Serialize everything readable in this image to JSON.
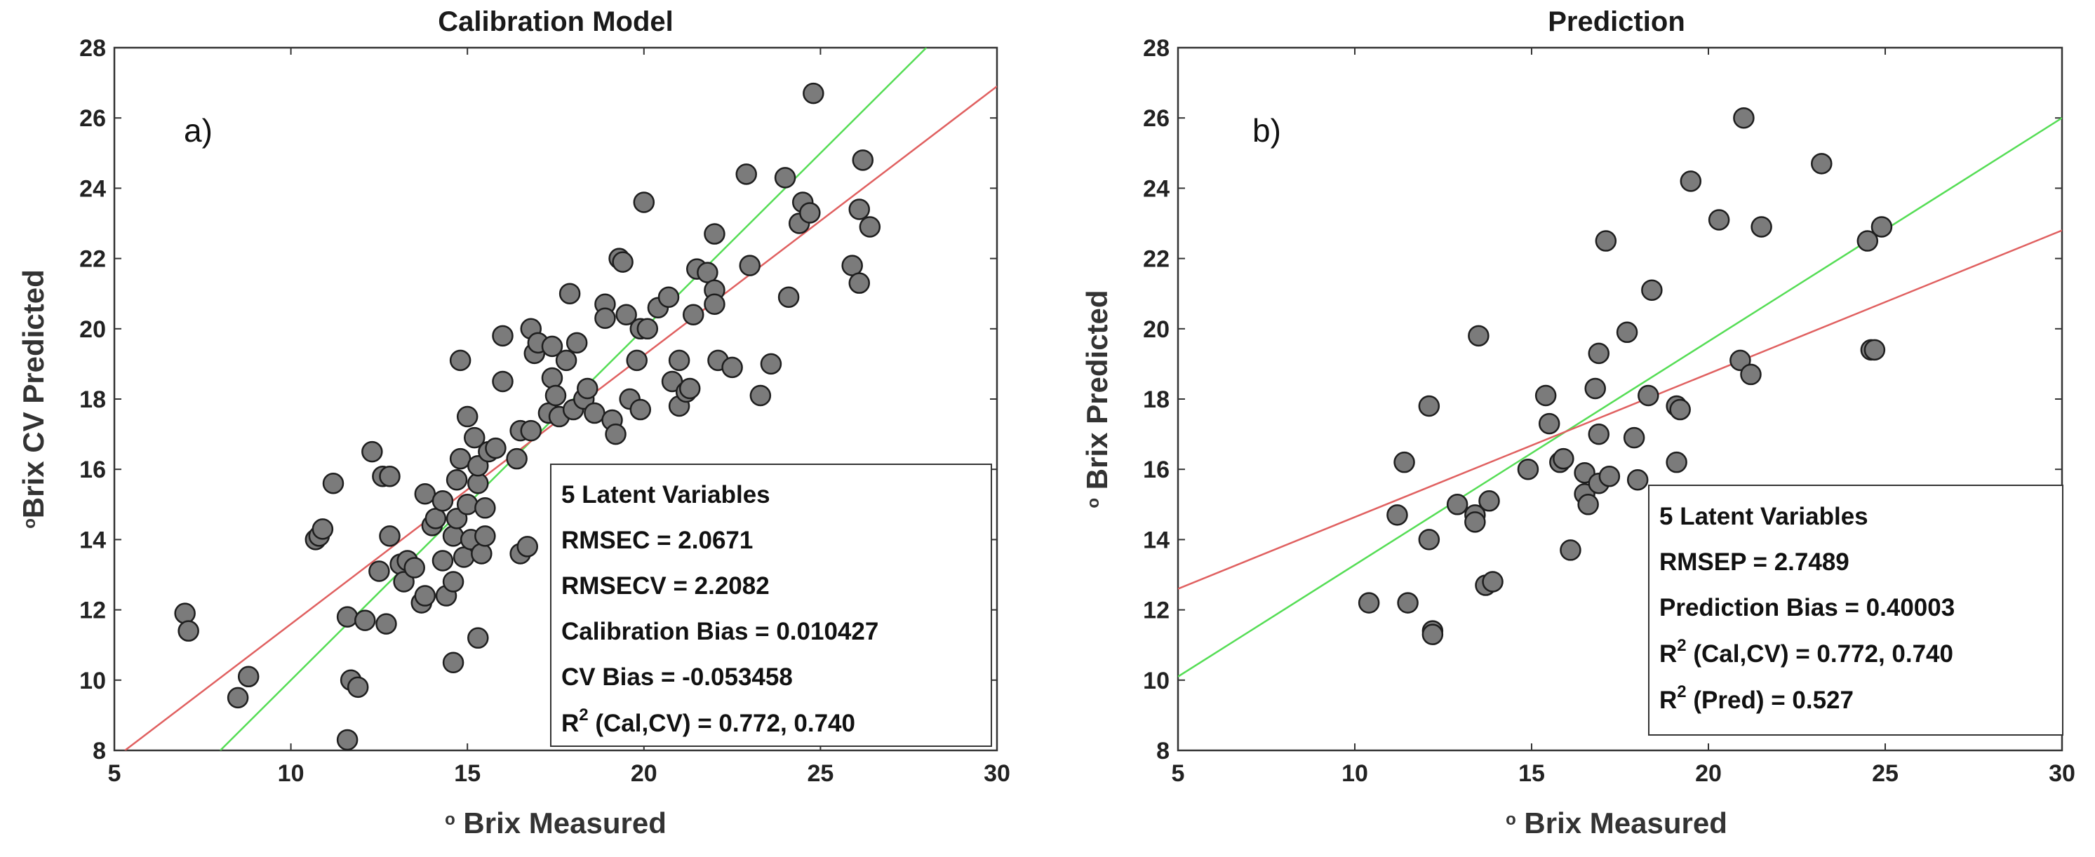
{
  "chart_data": [
    {
      "type": "scatter",
      "title": "Calibration Model",
      "panel_label": "a)",
      "xlabel": "o Brix Measured",
      "ylabel": "oBrix CV Predicted",
      "xlim": [
        5,
        30
      ],
      "ylim": [
        8,
        28
      ],
      "xticks": [
        "5",
        "10",
        "15",
        "20",
        "25",
        "30"
      ],
      "yticks": [
        "8",
        "10",
        "12",
        "14",
        "16",
        "18",
        "20",
        "22",
        "24",
        "26",
        "28"
      ],
      "stats": [
        "5 Latent Variables",
        "RMSEC = 2.0671",
        "RMSECV = 2.2082",
        "Calibration Bias = 0.010427",
        "CV Bias = -0.053458",
        "R2 (Cal,CV) = 0.772, 0.740"
      ],
      "fit_line": {
        "color": "#e06060",
        "x": [
          5.3,
          30
        ],
        "y": [
          8.0,
          26.9
        ]
      },
      "ideal_line": {
        "color": "#55dd55",
        "x": [
          8,
          28
        ],
        "y": [
          8,
          28
        ]
      },
      "points": [
        [
          7.0,
          11.9
        ],
        [
          7.1,
          11.4
        ],
        [
          8.5,
          9.5
        ],
        [
          8.8,
          10.1
        ],
        [
          10.7,
          14.0
        ],
        [
          10.8,
          14.1
        ],
        [
          10.9,
          14.3
        ],
        [
          11.2,
          15.6
        ],
        [
          11.6,
          11.8
        ],
        [
          11.6,
          8.3
        ],
        [
          11.7,
          10.0
        ],
        [
          11.9,
          9.8
        ],
        [
          12.1,
          11.7
        ],
        [
          12.3,
          16.5
        ],
        [
          12.5,
          13.1
        ],
        [
          12.6,
          15.8
        ],
        [
          12.7,
          11.6
        ],
        [
          12.8,
          14.1
        ],
        [
          12.8,
          15.8
        ],
        [
          13.1,
          13.3
        ],
        [
          13.2,
          12.8
        ],
        [
          13.3,
          13.4
        ],
        [
          13.5,
          13.2
        ],
        [
          13.7,
          12.2
        ],
        [
          13.8,
          12.4
        ],
        [
          13.8,
          15.3
        ],
        [
          14.0,
          14.4
        ],
        [
          14.1,
          14.6
        ],
        [
          14.3,
          13.4
        ],
        [
          14.3,
          15.1
        ],
        [
          14.4,
          12.4
        ],
        [
          14.6,
          10.5
        ],
        [
          14.6,
          12.8
        ],
        [
          14.6,
          14.1
        ],
        [
          14.7,
          14.6
        ],
        [
          14.7,
          15.7
        ],
        [
          14.8,
          16.3
        ],
        [
          14.8,
          19.1
        ],
        [
          14.9,
          13.5
        ],
        [
          15.0,
          17.5
        ],
        [
          15.0,
          15.0
        ],
        [
          15.1,
          14.0
        ],
        [
          15.2,
          16.9
        ],
        [
          15.3,
          11.2
        ],
        [
          15.3,
          15.6
        ],
        [
          15.3,
          16.1
        ],
        [
          15.4,
          13.6
        ],
        [
          15.5,
          14.1
        ],
        [
          15.5,
          14.9
        ],
        [
          15.6,
          16.5
        ],
        [
          15.8,
          16.6
        ],
        [
          16.0,
          18.5
        ],
        [
          16.0,
          19.8
        ],
        [
          16.4,
          16.3
        ],
        [
          16.5,
          13.6
        ],
        [
          16.5,
          17.1
        ],
        [
          16.7,
          13.8
        ],
        [
          16.8,
          17.1
        ],
        [
          16.8,
          20.0
        ],
        [
          16.9,
          19.3
        ],
        [
          17.0,
          19.6
        ],
        [
          17.3,
          17.6
        ],
        [
          17.4,
          18.6
        ],
        [
          17.4,
          19.5
        ],
        [
          17.5,
          18.1
        ],
        [
          17.6,
          17.5
        ],
        [
          17.8,
          19.1
        ],
        [
          17.9,
          21.0
        ],
        [
          18.0,
          17.7
        ],
        [
          18.1,
          19.6
        ],
        [
          18.3,
          18.0
        ],
        [
          18.4,
          18.3
        ],
        [
          18.6,
          17.6
        ],
        [
          18.9,
          20.7
        ],
        [
          18.9,
          20.3
        ],
        [
          19.1,
          17.4
        ],
        [
          19.2,
          17.0
        ],
        [
          19.3,
          22.0
        ],
        [
          19.4,
          21.9
        ],
        [
          19.5,
          20.4
        ],
        [
          19.6,
          18.0
        ],
        [
          19.8,
          19.1
        ],
        [
          19.9,
          17.7
        ],
        [
          19.9,
          20.0
        ],
        [
          20.0,
          23.6
        ],
        [
          20.1,
          20.0
        ],
        [
          20.4,
          20.6
        ],
        [
          20.7,
          20.9
        ],
        [
          20.8,
          18.5
        ],
        [
          21.0,
          17.8
        ],
        [
          21.0,
          19.1
        ],
        [
          21.2,
          18.2
        ],
        [
          21.3,
          18.3
        ],
        [
          21.4,
          20.4
        ],
        [
          21.5,
          21.7
        ],
        [
          21.8,
          21.6
        ],
        [
          22.0,
          22.7
        ],
        [
          22.0,
          21.1
        ],
        [
          22.0,
          20.7
        ],
        [
          22.1,
          19.1
        ],
        [
          22.5,
          18.9
        ],
        [
          22.9,
          24.4
        ],
        [
          23.0,
          21.8
        ],
        [
          23.3,
          18.1
        ],
        [
          23.6,
          19.0
        ],
        [
          24.0,
          24.3
        ],
        [
          24.1,
          20.9
        ],
        [
          24.4,
          23.0
        ],
        [
          24.5,
          23.6
        ],
        [
          24.7,
          23.3
        ],
        [
          24.8,
          26.7
        ],
        [
          25.9,
          21.8
        ],
        [
          26.1,
          21.3
        ],
        [
          26.1,
          23.4
        ],
        [
          26.2,
          24.8
        ],
        [
          26.4,
          22.9
        ]
      ]
    },
    {
      "type": "scatter",
      "title": "Prediction",
      "panel_label": "b)",
      "xlabel": "o Brix Measured",
      "ylabel": "o Brix Predicted",
      "xlim": [
        5,
        30
      ],
      "ylim": [
        8,
        28
      ],
      "xticks": [
        "5",
        "10",
        "15",
        "20",
        "25",
        "30"
      ],
      "yticks": [
        "8",
        "10",
        "12",
        "14",
        "16",
        "18",
        "20",
        "22",
        "24",
        "26",
        "28"
      ],
      "stats": [
        "5 Latent Variables",
        "RMSEP = 2.7489",
        "Prediction Bias = 0.40003",
        "R2 (Cal,CV) = 0.772, 0.740",
        "R2 (Pred) = 0.527"
      ],
      "fit_line": {
        "color": "#e06060",
        "x": [
          5,
          30
        ],
        "y": [
          12.6,
          22.8
        ]
      },
      "ideal_line": {
        "color": "#55dd55",
        "x": [
          5,
          30
        ],
        "y": [
          10.1,
          26.0
        ]
      },
      "points": [
        [
          10.4,
          12.2
        ],
        [
          11.2,
          14.7
        ],
        [
          11.4,
          16.2
        ],
        [
          11.5,
          12.2
        ],
        [
          12.1,
          14.0
        ],
        [
          12.1,
          17.8
        ],
        [
          12.2,
          11.4
        ],
        [
          12.2,
          11.3
        ],
        [
          12.9,
          15.0
        ],
        [
          13.4,
          14.7
        ],
        [
          13.4,
          14.5
        ],
        [
          13.5,
          19.8
        ],
        [
          13.7,
          12.7
        ],
        [
          13.8,
          15.1
        ],
        [
          13.9,
          12.8
        ],
        [
          14.9,
          16.0
        ],
        [
          15.4,
          18.1
        ],
        [
          15.5,
          17.3
        ],
        [
          15.8,
          16.2
        ],
        [
          15.9,
          16.3
        ],
        [
          16.1,
          13.7
        ],
        [
          16.5,
          15.9
        ],
        [
          16.5,
          15.3
        ],
        [
          16.6,
          15.0
        ],
        [
          16.8,
          18.3
        ],
        [
          16.9,
          19.3
        ],
        [
          16.9,
          17.0
        ],
        [
          16.9,
          15.6
        ],
        [
          17.1,
          22.5
        ],
        [
          17.2,
          15.8
        ],
        [
          17.7,
          19.9
        ],
        [
          17.9,
          16.9
        ],
        [
          18.0,
          15.7
        ],
        [
          18.3,
          18.1
        ],
        [
          18.4,
          21.1
        ],
        [
          19.1,
          17.8
        ],
        [
          19.1,
          16.2
        ],
        [
          19.2,
          17.7
        ],
        [
          19.5,
          24.2
        ],
        [
          20.3,
          23.1
        ],
        [
          20.9,
          19.1
        ],
        [
          21.0,
          26.0
        ],
        [
          21.2,
          18.7
        ],
        [
          21.5,
          22.9
        ],
        [
          23.2,
          24.7
        ],
        [
          24.5,
          22.5
        ],
        [
          24.6,
          19.4
        ],
        [
          24.7,
          19.4
        ],
        [
          24.9,
          22.9
        ]
      ]
    }
  ]
}
